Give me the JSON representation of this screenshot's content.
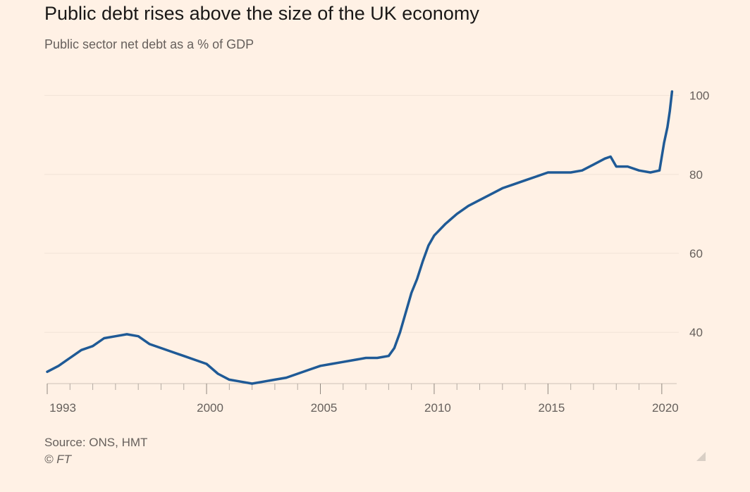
{
  "title": "Public debt rises above the size of the UK economy",
  "subtitle": "Public sector net debt as a % of GDP",
  "source": "Source: ONS, HMT",
  "copyright": "© FT",
  "colors": {
    "background": "#fff1e5",
    "line": "#1f5a96",
    "grid": "#f0e2d6",
    "axis_text": "#66605c"
  },
  "chart_data": {
    "type": "line",
    "title": "Public debt rises above the size of the UK economy",
    "subtitle": "Public sector net debt as a % of GDP",
    "xlabel": "",
    "ylabel": "",
    "xlim": [
      1993,
      2020.5
    ],
    "ylim": [
      27,
      101
    ],
    "y_axis_side": "right",
    "grid": true,
    "x_ticks": [
      1993,
      2000,
      2005,
      2010,
      2015,
      2020
    ],
    "y_ticks": [
      40,
      60,
      80,
      100
    ],
    "series": [
      {
        "x": [
          1993.0,
          1993.5,
          1994.0,
          1994.5,
          1995.0,
          1995.5,
          1996.0,
          1996.5,
          1997.0,
          1997.5,
          1998.0,
          1998.5,
          1999.0,
          1999.5,
          2000.0,
          2000.5,
          2001.0,
          2001.5,
          2002.0,
          2002.5,
          2003.0,
          2003.5,
          2004.0,
          2004.5,
          2005.0,
          2005.5,
          2006.0,
          2006.5,
          2007.0,
          2007.5,
          2008.0,
          2008.25,
          2008.5,
          2008.75,
          2009.0,
          2009.25,
          2009.5,
          2009.75,
          2010.0,
          2010.5,
          2011.0,
          2011.5,
          2012.0,
          2012.5,
          2013.0,
          2013.5,
          2014.0,
          2014.5,
          2015.0,
          2015.5,
          2016.0,
          2016.5,
          2017.0,
          2017.5,
          2017.75,
          2018.0,
          2018.5,
          2019.0,
          2019.5,
          2019.9,
          2020.1,
          2020.25,
          2020.35,
          2020.45
        ],
        "values": [
          30,
          31.5,
          33.5,
          35.5,
          36.5,
          38.5,
          39,
          39.5,
          39,
          37,
          36,
          35,
          34,
          33,
          32,
          29.5,
          28,
          27.5,
          27,
          27.5,
          28,
          28.5,
          29.5,
          30.5,
          31.5,
          32,
          32.5,
          33,
          33.5,
          33.5,
          34,
          36,
          40,
          45,
          50,
          53.5,
          58,
          62,
          64.5,
          67.5,
          70,
          72,
          73.5,
          75,
          76.5,
          77.5,
          78.5,
          79.5,
          80.5,
          80.5,
          80.5,
          81,
          82.5,
          84,
          84.5,
          82,
          82,
          81,
          80.5,
          81,
          88,
          92,
          96,
          101
        ]
      }
    ]
  }
}
